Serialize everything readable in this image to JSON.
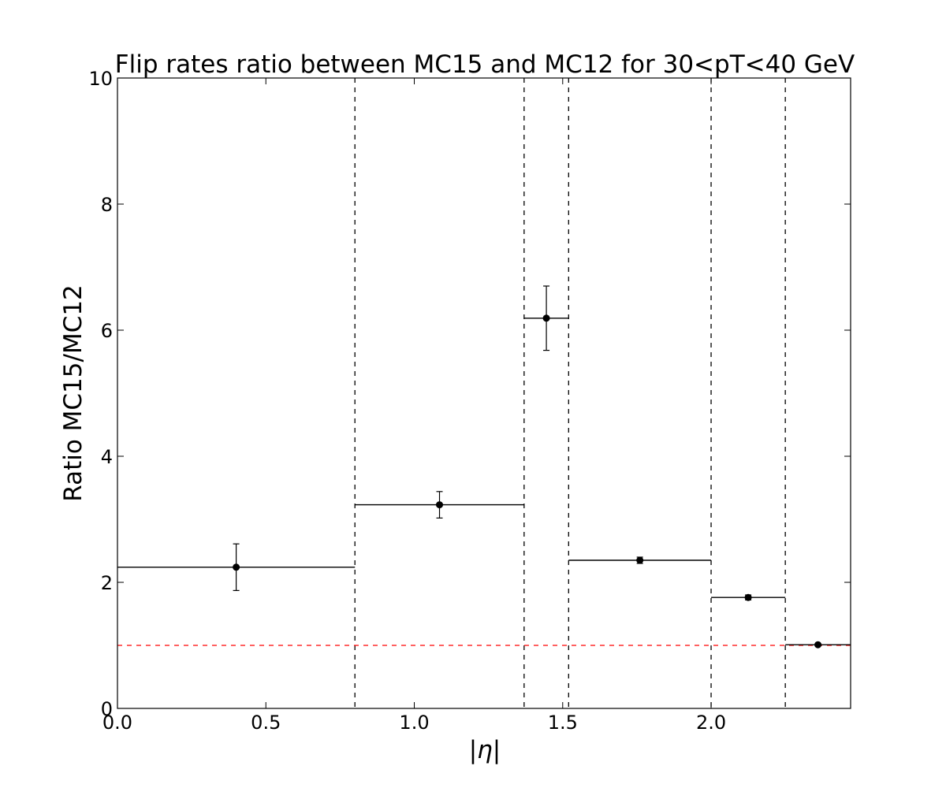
{
  "chart_data": {
    "type": "scatter",
    "title": "Flip rates ratio between MC15 and MC12 for 30<pT<40 GeV",
    "xlabel": "|η|",
    "ylabel": "Ratio MC15/MC12",
    "xlim": [
      0,
      2.47
    ],
    "ylim": [
      0,
      10
    ],
    "x_ticks": [
      "0.0",
      "0.5",
      "1.0",
      "1.5",
      "2.0"
    ],
    "y_ticks": [
      "0",
      "2",
      "4",
      "6",
      "8",
      "10"
    ],
    "grid": false,
    "bin_edges": [
      0,
      0.8,
      1.37,
      1.52,
      2.0,
      2.25,
      2.47
    ],
    "reference_line": {
      "y": 1.0,
      "color": "#ff0000",
      "style": "dashed"
    },
    "points": [
      {
        "x": 0.4,
        "y": 2.24,
        "xerr_low": 0.4,
        "xerr_high": 0.4,
        "yerr": 0.37
      },
      {
        "x": 1.085,
        "y": 3.23,
        "xerr_low": 0.285,
        "xerr_high": 0.285,
        "yerr": 0.21
      },
      {
        "x": 1.445,
        "y": 6.19,
        "xerr_low": 0.075,
        "xerr_high": 0.075,
        "yerr": 0.51
      },
      {
        "x": 1.76,
        "y": 2.35,
        "xerr_low": 0.24,
        "xerr_high": 0.24,
        "yerr": 0.05
      },
      {
        "x": 2.125,
        "y": 1.76,
        "xerr_low": 0.125,
        "xerr_high": 0.125,
        "yerr": 0.04
      },
      {
        "x": 2.36,
        "y": 1.01,
        "xerr_low": 0.11,
        "xerr_high": 0.11,
        "yerr": 0.02
      }
    ],
    "colors": {
      "points": "#000000",
      "bin_lines": "#000000",
      "reference": "#ff0000"
    }
  }
}
